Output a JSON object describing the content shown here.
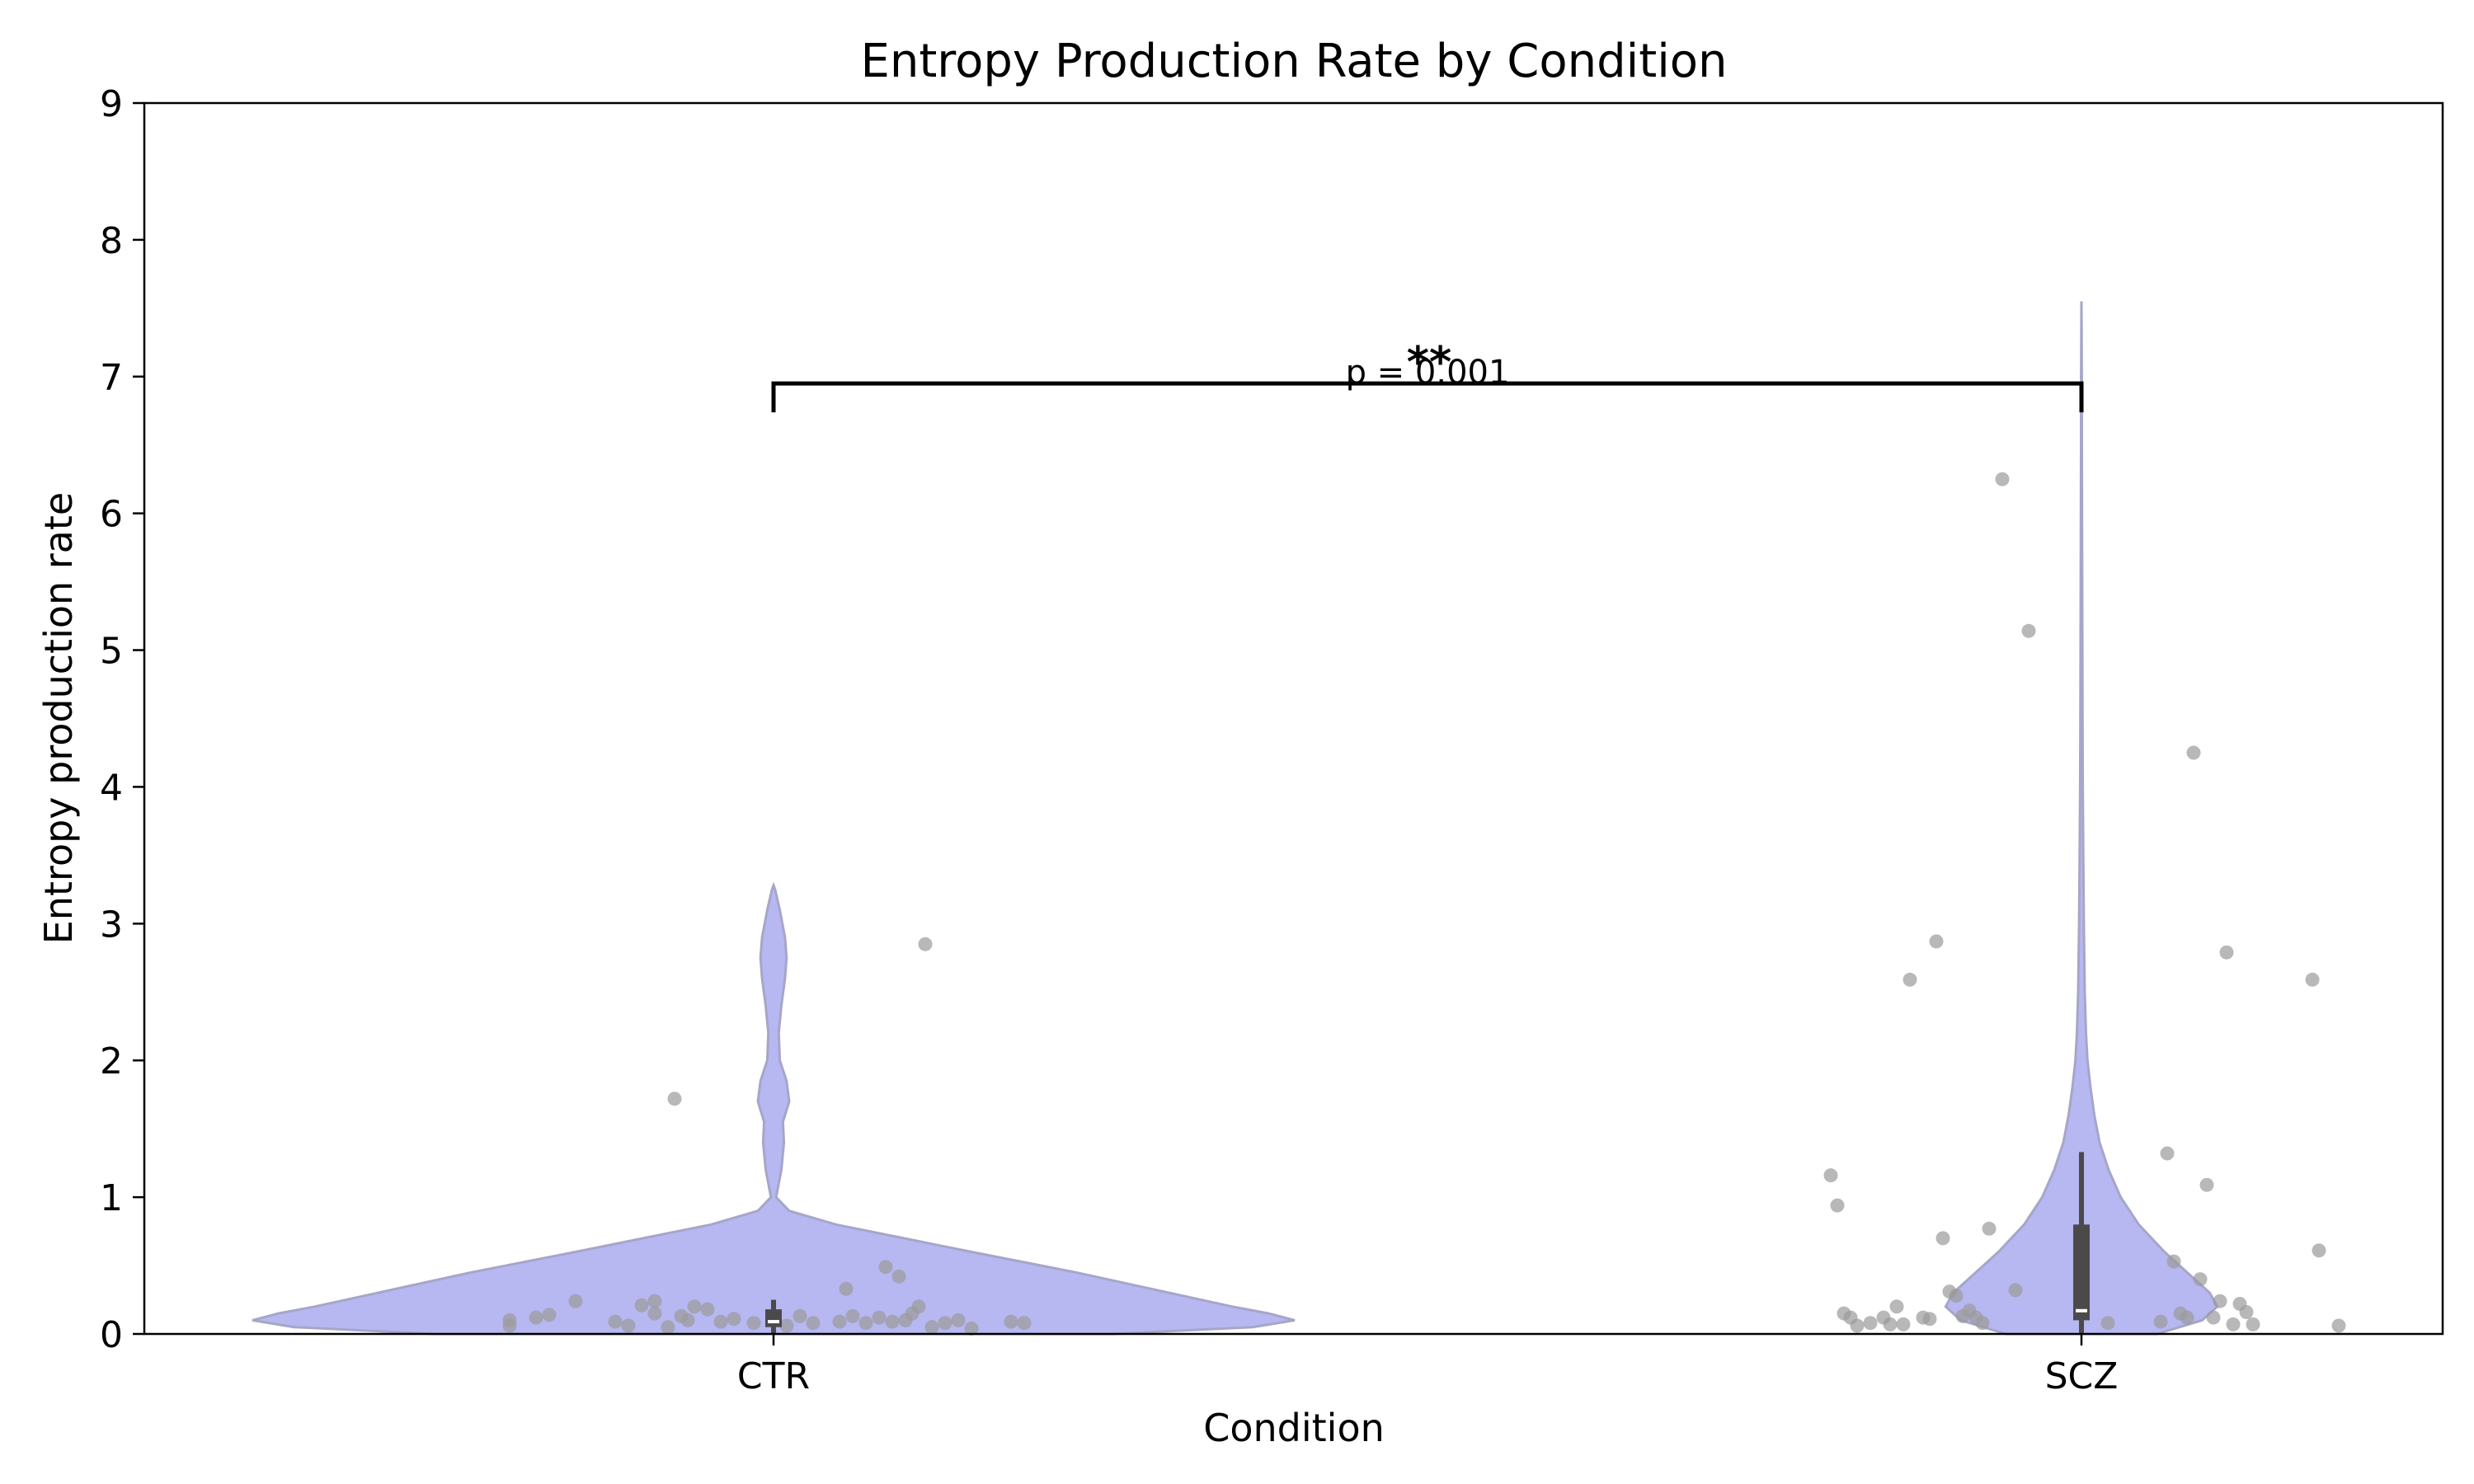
{
  "chart_data": {
    "type": "violin",
    "title": "Entropy Production Rate by Condition",
    "xlabel": "Condition",
    "ylabel": "Entropy production rate",
    "ylim": [
      0,
      9
    ],
    "yticks": [
      0,
      1,
      2,
      3,
      4,
      5,
      6,
      7,
      8,
      9
    ],
    "categories": [
      "CTR",
      "SCZ"
    ],
    "grid": false,
    "colors": {
      "violin_fill": "#b7b7f2",
      "violin_edge": "#a6a6c8",
      "points": "#9a9a9a",
      "box": "#4a4a4a",
      "median": "#ffffff"
    },
    "violins": [
      {
        "name": "CTR",
        "profile": [
          [
            0.0,
            0.65
          ],
          [
            0.05,
            0.92
          ],
          [
            0.1,
            1.0
          ],
          [
            0.15,
            0.95
          ],
          [
            0.2,
            0.88
          ],
          [
            0.3,
            0.76
          ],
          [
            0.45,
            0.58
          ],
          [
            0.6,
            0.38
          ],
          [
            0.7,
            0.25
          ],
          [
            0.8,
            0.12
          ],
          [
            0.9,
            0.03
          ],
          [
            1.0,
            0.005
          ],
          [
            1.1,
            0.01
          ],
          [
            1.2,
            0.015
          ],
          [
            1.4,
            0.02
          ],
          [
            1.55,
            0.018
          ],
          [
            1.7,
            0.03
          ],
          [
            1.85,
            0.025
          ],
          [
            2.0,
            0.012
          ],
          [
            2.2,
            0.01
          ],
          [
            2.4,
            0.015
          ],
          [
            2.6,
            0.022
          ],
          [
            2.75,
            0.025
          ],
          [
            2.9,
            0.022
          ],
          [
            3.1,
            0.012
          ],
          [
            3.25,
            0.003
          ],
          [
            3.28,
            0.0
          ]
        ],
        "box": {
          "q1": 0.05,
          "median": 0.09,
          "q3": 0.18,
          "whisker_low": 0.0,
          "whisker_high": 0.25
        },
        "points": [
          [
            -0.2,
            0.1
          ],
          [
            -0.2,
            0.06
          ],
          [
            -0.18,
            0.12
          ],
          [
            -0.17,
            0.14
          ],
          [
            -0.15,
            0.24
          ],
          [
            -0.12,
            0.09
          ],
          [
            -0.11,
            0.06
          ],
          [
            -0.1,
            0.21
          ],
          [
            -0.09,
            0.24
          ],
          [
            -0.09,
            0.15
          ],
          [
            -0.08,
            0.05
          ],
          [
            -0.075,
            1.72
          ],
          [
            -0.07,
            0.13
          ],
          [
            -0.065,
            0.1
          ],
          [
            -0.06,
            0.2
          ],
          [
            -0.05,
            0.18
          ],
          [
            -0.04,
            0.09
          ],
          [
            -0.03,
            0.11
          ],
          [
            -0.015,
            0.08
          ],
          [
            0.0,
            0.1
          ],
          [
            0.01,
            0.06
          ],
          [
            0.02,
            0.13
          ],
          [
            0.03,
            0.08
          ],
          [
            0.05,
            0.09
          ],
          [
            0.055,
            0.33
          ],
          [
            0.06,
            0.13
          ],
          [
            0.07,
            0.08
          ],
          [
            0.08,
            0.12
          ],
          [
            0.085,
            0.49
          ],
          [
            0.09,
            0.09
          ],
          [
            0.095,
            0.42
          ],
          [
            0.1,
            0.1
          ],
          [
            0.105,
            0.15
          ],
          [
            0.11,
            0.2
          ],
          [
            0.115,
            2.85
          ],
          [
            0.12,
            0.05
          ],
          [
            0.13,
            0.08
          ],
          [
            0.14,
            0.1
          ],
          [
            0.15,
            0.04
          ],
          [
            0.18,
            0.09
          ],
          [
            0.19,
            0.08
          ]
        ]
      },
      {
        "name": "SCZ",
        "profile": [
          [
            0.0,
            0.5
          ],
          [
            0.05,
            0.65
          ],
          [
            0.1,
            0.8
          ],
          [
            0.2,
            0.9
          ],
          [
            0.3,
            0.85
          ],
          [
            0.45,
            0.7
          ],
          [
            0.6,
            0.55
          ],
          [
            0.8,
            0.38
          ],
          [
            1.0,
            0.26
          ],
          [
            1.2,
            0.18
          ],
          [
            1.4,
            0.12
          ],
          [
            1.6,
            0.085
          ],
          [
            1.8,
            0.06
          ],
          [
            2.0,
            0.04
          ],
          [
            2.2,
            0.03
          ],
          [
            2.5,
            0.022
          ],
          [
            3.0,
            0.016
          ],
          [
            3.5,
            0.012
          ],
          [
            4.0,
            0.009
          ],
          [
            4.5,
            0.007
          ],
          [
            5.0,
            0.006
          ],
          [
            5.5,
            0.005
          ],
          [
            6.0,
            0.004
          ],
          [
            6.5,
            0.003
          ],
          [
            7.0,
            0.002
          ],
          [
            7.3,
            0.001
          ],
          [
            7.55,
            0.0
          ]
        ],
        "box": {
          "q1": 0.1,
          "median": 0.17,
          "q3": 0.8,
          "whisker_low": 0.0,
          "whisker_high": 1.33
        },
        "points": [
          [
            -0.19,
            1.16
          ],
          [
            -0.185,
            0.94
          ],
          [
            -0.18,
            0.15
          ],
          [
            -0.175,
            0.12
          ],
          [
            -0.17,
            0.06
          ],
          [
            -0.16,
            0.08
          ],
          [
            -0.15,
            0.12
          ],
          [
            -0.145,
            0.07
          ],
          [
            -0.14,
            0.2
          ],
          [
            -0.135,
            0.07
          ],
          [
            -0.13,
            2.59
          ],
          [
            -0.12,
            0.12
          ],
          [
            -0.115,
            0.11
          ],
          [
            -0.11,
            2.87
          ],
          [
            -0.105,
            0.7
          ],
          [
            -0.1,
            0.31
          ],
          [
            -0.095,
            0.28
          ],
          [
            -0.09,
            0.13
          ],
          [
            -0.085,
            0.17
          ],
          [
            -0.08,
            0.12
          ],
          [
            -0.075,
            0.08
          ],
          [
            -0.07,
            0.77
          ],
          [
            -0.06,
            6.25
          ],
          [
            -0.05,
            0.32
          ],
          [
            -0.04,
            5.14
          ],
          [
            0.02,
            0.08
          ],
          [
            0.06,
            0.09
          ],
          [
            0.065,
            1.32
          ],
          [
            0.07,
            0.53
          ],
          [
            0.075,
            0.15
          ],
          [
            0.08,
            0.12
          ],
          [
            0.085,
            4.25
          ],
          [
            0.09,
            0.4
          ],
          [
            0.095,
            1.09
          ],
          [
            0.1,
            0.12
          ],
          [
            0.105,
            0.24
          ],
          [
            0.11,
            2.79
          ],
          [
            0.115,
            0.07
          ],
          [
            0.12,
            0.22
          ],
          [
            0.125,
            0.16
          ],
          [
            0.13,
            0.07
          ],
          [
            0.175,
            2.59
          ],
          [
            0.18,
            0.61
          ],
          [
            0.195,
            0.06
          ]
        ]
      }
    ],
    "annotation": {
      "stars": "**",
      "text": "p = 0.001",
      "bracket_y": 6.95
    }
  }
}
